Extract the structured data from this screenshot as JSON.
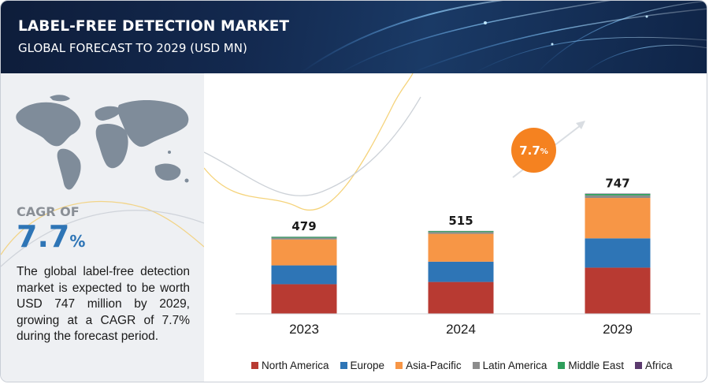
{
  "header": {
    "title": "LABEL-FREE DETECTION MARKET",
    "subtitle": "GLOBAL FORECAST TO 2029 (USD MN)"
  },
  "sidebar": {
    "cagr_label": "CAGR OF",
    "cagr_value": "7.7",
    "cagr_unit": "%",
    "description": "The global label-free detection market is expected to be worth USD 747 million by 2029, growing at a CAGR of 7.7% during the forecast period."
  },
  "badge": {
    "value": "7.7",
    "unit": "%"
  },
  "colors": {
    "north_america": "#b83a32",
    "europe": "#2e75b6",
    "asia_pacific": "#f79646",
    "latin_america": "#8c8c8c",
    "middle_east": "#2e9e5b",
    "africa": "#5b3a6e",
    "accent": "#f58220"
  },
  "chart_data": {
    "type": "bar",
    "stacked": true,
    "categories": [
      "2023",
      "2024",
      "2029"
    ],
    "totals": [
      "479",
      "515",
      "747"
    ],
    "series": [
      {
        "name": "North America",
        "values": [
          184,
          198,
          287
        ]
      },
      {
        "name": "Europe",
        "values": [
          117,
          126,
          182
        ]
      },
      {
        "name": "Asia-Pacific",
        "values": [
          161,
          173,
          251
        ]
      },
      {
        "name": "Latin America",
        "values": [
          10,
          11,
          16
        ]
      },
      {
        "name": "Middle East",
        "values": [
          6,
          6,
          9
        ]
      },
      {
        "name": "Africa",
        "values": [
          1,
          1,
          2
        ]
      }
    ],
    "legend_position": "bottom",
    "grid": false
  }
}
